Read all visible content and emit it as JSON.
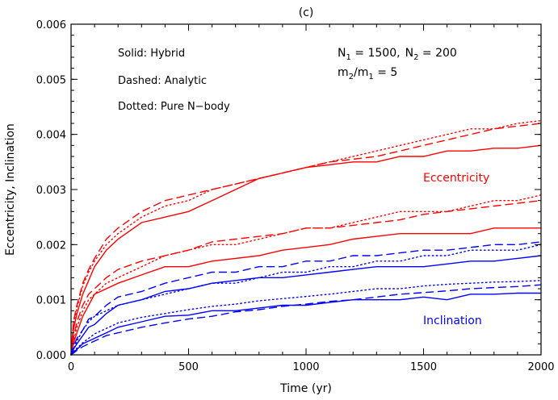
{
  "chart_data": {
    "type": "line",
    "title": "(c)",
    "xlabel": "Time (yr)",
    "ylabel": "Eccentricity, Inclination",
    "xlim": [
      0,
      2000
    ],
    "ylim": [
      0,
      0.006
    ],
    "xticks": [
      0,
      500,
      1000,
      1500,
      2000
    ],
    "xtick_labels": [
      "0",
      "500",
      "1000",
      "1500",
      "2000"
    ],
    "yticks": [
      0,
      0.001,
      0.002,
      0.003,
      0.004,
      0.005,
      0.006
    ],
    "ytick_labels": [
      "0.000",
      "0.001",
      "0.002",
      "0.003",
      "0.004",
      "0.005",
      "0.006"
    ],
    "grid": false,
    "legend_text": {
      "solid": "Solid: Hybrid",
      "dashed": "Dashed: Analytic",
      "dotted": "Dotted: Pure N−body"
    },
    "params": {
      "N1_label": "N",
      "N1_sub": "1",
      "N1_value": " = 1500,",
      "N2_label": "N",
      "N2_sub": "2",
      "N2_value": " = 200",
      "ratio_m2": "m",
      "ratio_m2_sub": "2",
      "ratio_slash": "/m",
      "ratio_m1_sub": "1",
      "ratio_value": " = 5"
    },
    "annotations": {
      "eccentricity": "Eccentricity",
      "inclination": "Inclination"
    },
    "colors": {
      "eccentricity": "#ff0000",
      "inclination": "#0000ff"
    },
    "x": [
      0,
      10,
      25,
      50,
      75,
      100,
      150,
      200,
      300,
      400,
      500,
      600,
      700,
      800,
      900,
      1000,
      1100,
      1200,
      1300,
      1400,
      1500,
      1600,
      1700,
      1800,
      1900,
      2000
    ],
    "series": [
      {
        "group": "eccentricity",
        "style": "solid",
        "values": [
          0,
          0.00045,
          0.00075,
          0.0011,
          0.00135,
          0.0016,
          0.0019,
          0.0021,
          0.0024,
          0.0025,
          0.0026,
          0.0028,
          0.003,
          0.0032,
          0.0033,
          0.0034,
          0.00345,
          0.0035,
          0.0035,
          0.0036,
          0.0036,
          0.0037,
          0.0037,
          0.00375,
          0.00375,
          0.0038
        ]
      },
      {
        "group": "eccentricity",
        "style": "dashed",
        "values": [
          0,
          0.0006,
          0.0009,
          0.0013,
          0.00155,
          0.00175,
          0.0021,
          0.0023,
          0.0026,
          0.0028,
          0.0029,
          0.003,
          0.0031,
          0.0032,
          0.0033,
          0.0034,
          0.0035,
          0.00355,
          0.0036,
          0.0037,
          0.0038,
          0.0039,
          0.004,
          0.0041,
          0.00415,
          0.0042
        ]
      },
      {
        "group": "eccentricity",
        "style": "dotted",
        "values": [
          0,
          0.00055,
          0.00085,
          0.00125,
          0.0015,
          0.0017,
          0.002,
          0.0022,
          0.0025,
          0.0027,
          0.0028,
          0.003,
          0.0031,
          0.0032,
          0.0033,
          0.0034,
          0.0035,
          0.0036,
          0.0037,
          0.0038,
          0.0039,
          0.004,
          0.0041,
          0.0041,
          0.0042,
          0.00425
        ]
      },
      {
        "group": "eccentricity",
        "style": "solid",
        "values": [
          0,
          0.0002,
          0.0004,
          0.0007,
          0.0009,
          0.0011,
          0.0012,
          0.0013,
          0.00145,
          0.0016,
          0.0016,
          0.0017,
          0.00175,
          0.0018,
          0.0019,
          0.00195,
          0.002,
          0.0021,
          0.00215,
          0.0022,
          0.0022,
          0.0022,
          0.0022,
          0.0023,
          0.0023,
          0.0023
        ]
      },
      {
        "group": "eccentricity",
        "style": "dashed",
        "values": [
          0,
          0.0003,
          0.0006,
          0.0009,
          0.0011,
          0.0012,
          0.0014,
          0.00155,
          0.0017,
          0.0018,
          0.0019,
          0.00205,
          0.0021,
          0.00215,
          0.0022,
          0.0023,
          0.0023,
          0.00235,
          0.0024,
          0.00245,
          0.00255,
          0.0026,
          0.00265,
          0.0027,
          0.00275,
          0.0028
        ]
      },
      {
        "group": "eccentricity",
        "style": "dotted",
        "values": [
          0,
          0.00025,
          0.0005,
          0.0008,
          0.001,
          0.0011,
          0.0013,
          0.0014,
          0.0016,
          0.0018,
          0.0019,
          0.002,
          0.002,
          0.0021,
          0.0022,
          0.0023,
          0.0023,
          0.0024,
          0.0025,
          0.0026,
          0.0026,
          0.0026,
          0.0027,
          0.0028,
          0.0028,
          0.0029
        ]
      },
      {
        "group": "inclination",
        "style": "solid",
        "values": [
          0,
          0.0001,
          0.0002,
          0.00035,
          0.0005,
          0.00055,
          0.00075,
          0.0009,
          0.001,
          0.00115,
          0.0012,
          0.0013,
          0.00135,
          0.0014,
          0.0014,
          0.00145,
          0.0015,
          0.00155,
          0.0016,
          0.0016,
          0.0016,
          0.00165,
          0.0017,
          0.0017,
          0.00175,
          0.0018
        ]
      },
      {
        "group": "inclination",
        "style": "dashed",
        "values": [
          0,
          0.00015,
          0.0003,
          0.00045,
          0.00065,
          0.0007,
          0.0009,
          0.00105,
          0.00115,
          0.0013,
          0.0014,
          0.0015,
          0.0015,
          0.0016,
          0.0016,
          0.0017,
          0.0017,
          0.0018,
          0.0018,
          0.00185,
          0.0019,
          0.0019,
          0.00195,
          0.002,
          0.002,
          0.00205
        ]
      },
      {
        "group": "inclination",
        "style": "dotted",
        "values": [
          0,
          0.0001,
          0.00025,
          0.00045,
          0.0006,
          0.0007,
          0.0008,
          0.0009,
          0.001,
          0.0011,
          0.0012,
          0.0013,
          0.0013,
          0.0014,
          0.0015,
          0.0015,
          0.0016,
          0.0016,
          0.0017,
          0.0017,
          0.0018,
          0.0018,
          0.0019,
          0.0019,
          0.0019,
          0.002
        ]
      },
      {
        "group": "inclination",
        "style": "solid",
        "values": [
          0,
          5e-05,
          0.0001,
          0.0002,
          0.00025,
          0.0003,
          0.0004,
          0.0005,
          0.0006,
          0.0007,
          0.00072,
          0.0008,
          0.0008,
          0.00085,
          0.0009,
          0.0009,
          0.00095,
          0.001,
          0.001,
          0.001,
          0.00105,
          0.001,
          0.0011,
          0.0011,
          0.00112,
          0.00112
        ]
      },
      {
        "group": "inclination",
        "style": "dashed",
        "values": [
          0,
          3e-05,
          8e-05,
          0.00015,
          0.0002,
          0.00025,
          0.00035,
          0.0004,
          0.0005,
          0.00058,
          0.00065,
          0.0007,
          0.00078,
          0.00082,
          0.00088,
          0.00092,
          0.00097,
          0.001,
          0.00105,
          0.0011,
          0.00113,
          0.00116,
          0.0012,
          0.00122,
          0.00124,
          0.00127
        ]
      },
      {
        "group": "inclination",
        "style": "dotted",
        "values": [
          0,
          6e-05,
          0.00012,
          0.00022,
          0.0003,
          0.00038,
          0.00048,
          0.00058,
          0.00068,
          0.00075,
          0.00082,
          0.00088,
          0.00092,
          0.00098,
          0.00102,
          0.00106,
          0.0011,
          0.00115,
          0.0012,
          0.0012,
          0.00125,
          0.00128,
          0.0013,
          0.00132,
          0.00133,
          0.00135
        ]
      }
    ]
  }
}
